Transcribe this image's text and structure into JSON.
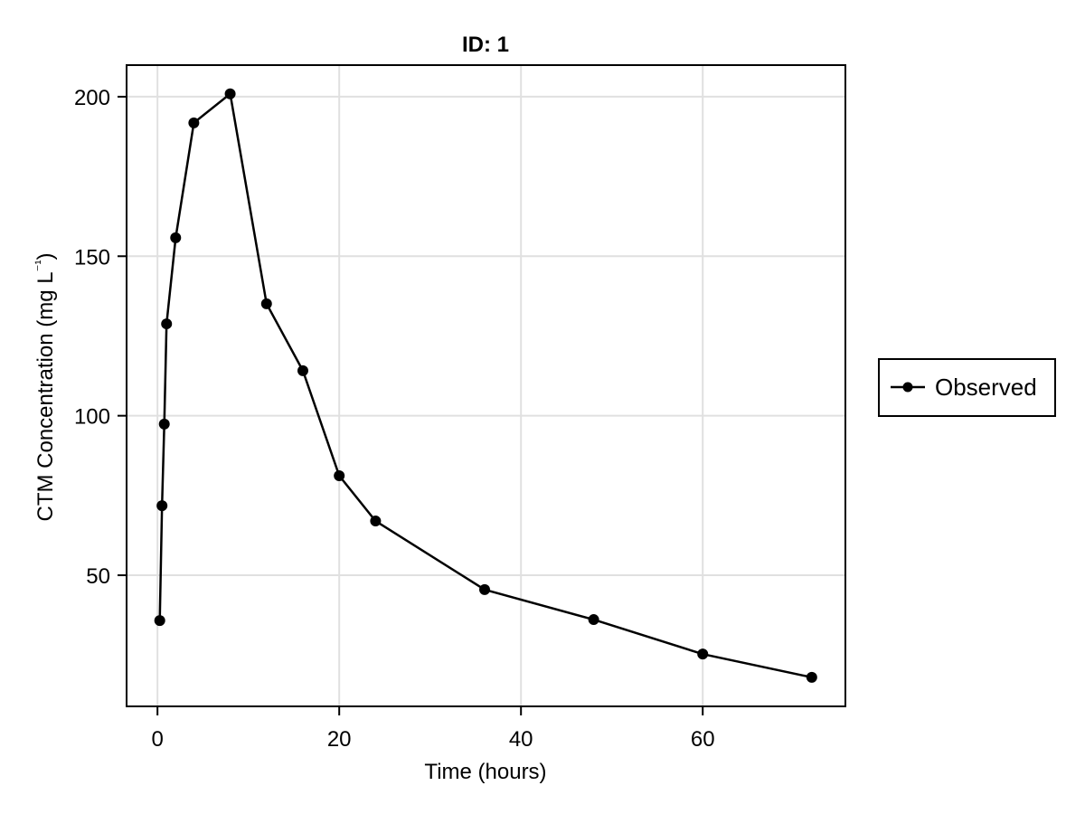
{
  "chart_data": {
    "type": "line",
    "title": "ID: 1",
    "xlabel": "Time (hours)",
    "ylabel": "CTM Concentration (mg L⁻¹)",
    "xlim": [
      -3.4,
      75.7
    ],
    "ylim": [
      8.9,
      209.9
    ],
    "xticks": [
      0,
      20,
      40,
      60
    ],
    "yticks": [
      50,
      100,
      150,
      200
    ],
    "grid": true,
    "legend_position": "right",
    "series": [
      {
        "name": "Observed",
        "color": "#000000",
        "marker": "circle",
        "x": [
          0.25,
          0.5,
          0.75,
          1,
          2,
          4,
          8,
          12,
          16,
          20,
          24,
          36,
          48,
          60,
          72
        ],
        "y": [
          35.8,
          71.8,
          97.4,
          128.8,
          155.8,
          191.8,
          200.9,
          135.1,
          114.1,
          81.2,
          67.0,
          45.5,
          36.1,
          25.3,
          18.0
        ]
      }
    ]
  },
  "labels": {
    "title": "ID: 1",
    "xlabel": "Time (hours)",
    "ylabel_main": "CTM Concentration (mg L",
    "ylabel_sup": "⁻¹",
    "ylabel_close": ")",
    "legend_item": "Observed"
  },
  "ticks": {
    "x": [
      "0",
      "20",
      "40",
      "60"
    ],
    "y": [
      "50",
      "100",
      "150",
      "200"
    ]
  },
  "colors": {
    "line": "#000000",
    "grid": "#e0e0e0",
    "frame": "#000000"
  }
}
